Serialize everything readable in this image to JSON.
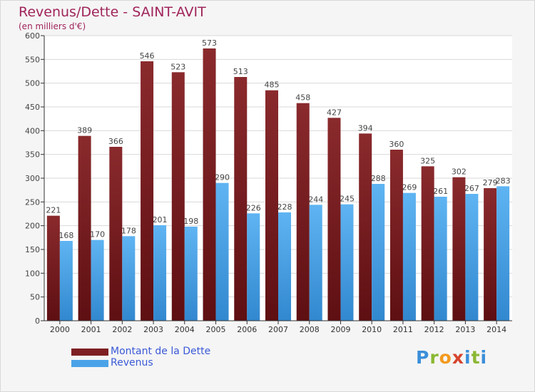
{
  "header": {
    "title": "Revenus/Dette - SAINT-AVIT",
    "subtitle": "(en milliers d'€)"
  },
  "logo": {
    "text": "Proxiti"
  },
  "colors": {
    "debt": "#7d1f22",
    "revenue": "#4aa3e8",
    "grid": "#d9d9d9",
    "axis": "#333333",
    "title": "#a0245a",
    "legend_text": "#3a59d6"
  },
  "chart_data": {
    "type": "bar",
    "title": "Revenus/Dette - SAINT-AVIT",
    "subtitle": "(en milliers d'€)",
    "xlabel": "",
    "ylabel": "",
    "ylim": [
      0,
      600
    ],
    "yticks": [
      0,
      50,
      100,
      150,
      200,
      250,
      300,
      350,
      400,
      450,
      500,
      550,
      600
    ],
    "grid": true,
    "legend_position": "bottom-left",
    "categories": [
      "2000",
      "2001",
      "2002",
      "2003",
      "2004",
      "2005",
      "2006",
      "2007",
      "2008",
      "2009",
      "2010",
      "2011",
      "2012",
      "2013",
      "2014"
    ],
    "series": [
      {
        "name": "Montant de la Dette",
        "color": "#7d1f22",
        "values": [
          221,
          389,
          366,
          546,
          523,
          573,
          513,
          485,
          458,
          427,
          394,
          360,
          325,
          302,
          279
        ]
      },
      {
        "name": "Revenus",
        "color": "#4aa3e8",
        "values": [
          168,
          170,
          178,
          201,
          198,
          290,
          226,
          228,
          244,
          245,
          288,
          269,
          261,
          267,
          283
        ]
      }
    ]
  }
}
